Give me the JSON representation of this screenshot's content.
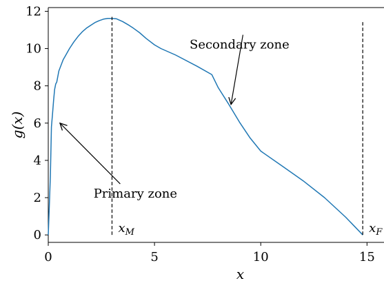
{
  "chart_data": {
    "type": "line",
    "xlabel": "x",
    "ylabel": "g(x)",
    "xlim": [
      0,
      15.8
    ],
    "ylim": [
      -0.4,
      12.2
    ],
    "xticks": [
      0,
      5,
      10,
      15
    ],
    "yticks": [
      0,
      2,
      4,
      6,
      8,
      10,
      12
    ],
    "grid": false,
    "line_color": "#1f77b4",
    "series": [
      {
        "x": [
          0,
          0.05,
          0.1,
          0.15,
          0.2,
          0.25,
          0.3,
          0.35,
          0.4,
          0.5,
          0.6,
          0.7,
          0.8,
          0.9,
          1.0,
          1.2,
          1.4,
          1.6,
          1.8,
          2.0,
          2.2,
          2.4,
          2.6,
          2.8,
          3.0,
          3.2,
          3.5,
          3.8,
          4.0,
          4.3,
          4.6,
          5.0,
          5.3,
          6.0,
          7.0,
          7.7,
          8.0,
          8.5,
          9.0,
          9.5,
          10.0,
          11.0,
          12.0,
          13.0,
          14.0,
          14.8
        ],
        "y": [
          0,
          1.5,
          3.2,
          5.8,
          6.5,
          7.2,
          7.8,
          8.1,
          8.2,
          8.8,
          9.1,
          9.4,
          9.6,
          9.8,
          10.0,
          10.35,
          10.65,
          10.9,
          11.1,
          11.25,
          11.4,
          11.5,
          11.58,
          11.62,
          11.62,
          11.6,
          11.45,
          11.25,
          11.1,
          10.85,
          10.55,
          10.2,
          10.0,
          9.65,
          9.05,
          8.6,
          7.9,
          7.0,
          6.05,
          5.2,
          4.5,
          3.7,
          2.9,
          2.0,
          0.95,
          0.0
        ]
      }
    ],
    "vlines": [
      {
        "x": 3,
        "y_from": 0,
        "y_to": 11.7,
        "label": "x_M"
      },
      {
        "x": 14.8,
        "y_from": 0,
        "y_to": 11.5,
        "label": "x_F"
      }
    ],
    "annotations": [
      {
        "text": "Primary zone",
        "text_x": 4.1,
        "text_y": 2.0,
        "arrow_x": 0.55,
        "arrow_y": 6.0
      },
      {
        "text": "Secondary zone",
        "text_x": 9.0,
        "text_y": 10.0,
        "arrow_x": 8.6,
        "arrow_y": 7.0
      }
    ]
  }
}
